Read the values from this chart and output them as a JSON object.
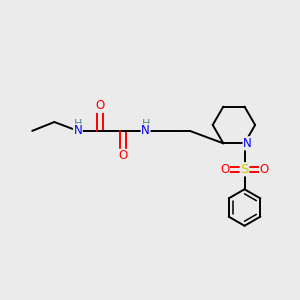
{
  "background_color": "#EBEBEB",
  "atom_colors": {
    "N": "#0000FF",
    "O": "#FF0000",
    "S": "#CCCC00",
    "C": "#000000",
    "H": "#4A8A8A"
  },
  "font_size": 8.5,
  "bond_lw": 1.4
}
